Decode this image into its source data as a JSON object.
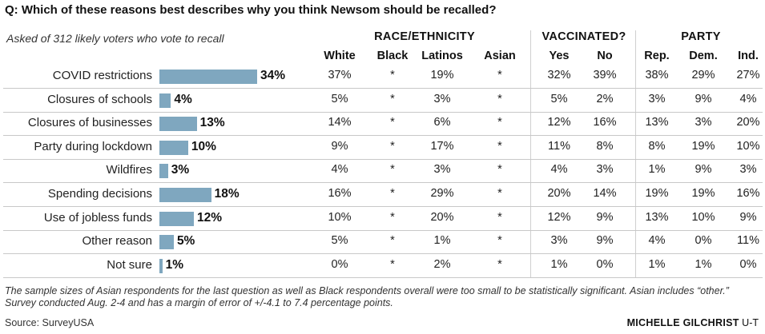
{
  "header": {
    "question": "Q: Which of these reasons best describes why you think Newsom should be recalled?",
    "subtitle": "Asked of 312 likely voters who vote to recall"
  },
  "groups": {
    "race": "RACE/ETHNICITY",
    "vaccinated": "VACCINATED?",
    "party": "PARTY"
  },
  "columns": [
    "White",
    "Black",
    "Latinos",
    "Asian",
    "Yes",
    "No",
    "Rep.",
    "Dem.",
    "Ind."
  ],
  "chart_data": {
    "type": "bar",
    "orientation": "horizontal",
    "categories": [
      "COVID restrictions",
      "Closures of schools",
      "Closures of businesses",
      "Party during lockdown",
      "Wildfires",
      "Spending decisions",
      "Use of jobless funds",
      "Other reason",
      "Not sure"
    ],
    "values": [
      34,
      4,
      13,
      10,
      3,
      18,
      12,
      5,
      1
    ],
    "value_labels": [
      "34%",
      "4%",
      "13%",
      "10%",
      "3%",
      "18%",
      "12%",
      "5%",
      "1%"
    ],
    "unit": "%",
    "xlim": [
      0,
      34
    ],
    "bar_color": "#7fa7bf"
  },
  "table": {
    "rows": [
      [
        "37%",
        "*",
        "19%",
        "*",
        "32%",
        "39%",
        "38%",
        "29%",
        "27%"
      ],
      [
        "5%",
        "*",
        "3%",
        "*",
        "5%",
        "2%",
        "3%",
        "9%",
        "4%"
      ],
      [
        "14%",
        "*",
        "6%",
        "*",
        "12%",
        "16%",
        "13%",
        "3%",
        "20%"
      ],
      [
        "9%",
        "*",
        "17%",
        "*",
        "11%",
        "8%",
        "8%",
        "19%",
        "10%"
      ],
      [
        "4%",
        "*",
        "3%",
        "*",
        "4%",
        "3%",
        "1%",
        "9%",
        "3%"
      ],
      [
        "16%",
        "*",
        "29%",
        "*",
        "20%",
        "14%",
        "19%",
        "19%",
        "16%"
      ],
      [
        "10%",
        "*",
        "20%",
        "*",
        "12%",
        "9%",
        "13%",
        "10%",
        "9%"
      ],
      [
        "5%",
        "*",
        "1%",
        "*",
        "3%",
        "9%",
        "4%",
        "0%",
        "11%"
      ],
      [
        "0%",
        "*",
        "2%",
        "*",
        "1%",
        "0%",
        "1%",
        "1%",
        "0%"
      ]
    ]
  },
  "footer": {
    "note": "The sample sizes of Asian respondents for the last question as well as Black respondents overall were too small to be statistically significant. Asian includes “other.” Survey conducted Aug. 2-4 and has a margin of error of +/-4.1 to 7.4 percentage points.",
    "source": "Source: SurveyUSA",
    "credit_name": "MICHELLE GILCHRIST",
    "credit_org": "U-T"
  }
}
